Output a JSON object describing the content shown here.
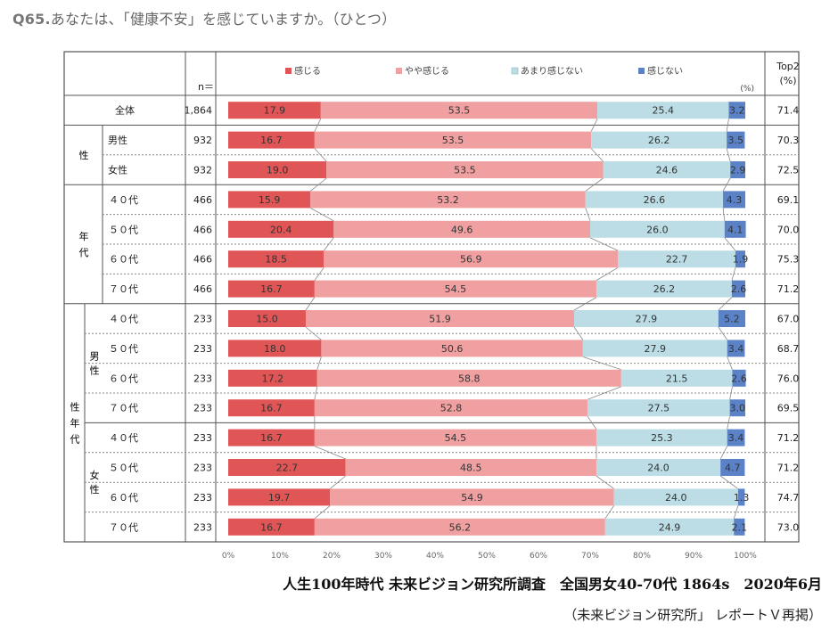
{
  "question": {
    "number": "Q65.",
    "text": "あなたは、「健康不安」を感じていますか。（ひとつ）"
  },
  "chart_data": {
    "type": "bar",
    "stacked": true,
    "orientation": "horizontal",
    "n_header": "n＝",
    "unit_label": "(%)",
    "top2_header": [
      "Top2",
      "(%)"
    ],
    "series": [
      {
        "name": "感じる",
        "color": "#e05555"
      },
      {
        "name": "やや感じる",
        "color": "#f0a0a0"
      },
      {
        "name": "あまり感じない",
        "color": "#bcdde6"
      },
      {
        "name": "感じない",
        "color": "#5b82c6"
      }
    ],
    "xlim": [
      0,
      100
    ],
    "xticks": [
      "0%",
      "10%",
      "20%",
      "30%",
      "40%",
      "50%",
      "60%",
      "70%",
      "80%",
      "90%",
      "100%"
    ],
    "group_labels": {
      "sei": "性",
      "nendai": "年代",
      "seinendai": "性年代",
      "dansei": "男性",
      "josei": "女性"
    },
    "rows": [
      {
        "label": "全体",
        "n": "1,864",
        "values": [
          17.9,
          53.5,
          25.4,
          3.2
        ],
        "labels": [
          "17.9",
          "53.5",
          "25.4",
          "3.2"
        ],
        "top2": "71.4"
      },
      {
        "label": "男性",
        "n": "932",
        "values": [
          16.7,
          53.5,
          26.2,
          3.5
        ],
        "labels": [
          "16.7",
          "53.5",
          "26.2",
          "3.5"
        ],
        "top2": "70.3"
      },
      {
        "label": "女性",
        "n": "932",
        "values": [
          19.0,
          53.5,
          24.6,
          2.9
        ],
        "labels": [
          "19.0",
          "53.5",
          "24.6",
          "2.9"
        ],
        "top2": "72.5"
      },
      {
        "label": "４０代",
        "n": "466",
        "values": [
          15.9,
          53.2,
          26.6,
          4.3
        ],
        "labels": [
          "15.9",
          "53.2",
          "26.6",
          "4.3"
        ],
        "top2": "69.1"
      },
      {
        "label": "５０代",
        "n": "466",
        "values": [
          20.4,
          49.6,
          26.0,
          4.1
        ],
        "labels": [
          "20.4",
          "49.6",
          "26.0",
          "4.1"
        ],
        "top2": "70.0"
      },
      {
        "label": "６０代",
        "n": "466",
        "values": [
          18.5,
          56.9,
          22.7,
          1.9
        ],
        "labels": [
          "18.5",
          "56.9",
          "22.7",
          "1.9"
        ],
        "top2": "75.3"
      },
      {
        "label": "７０代",
        "n": "466",
        "values": [
          16.7,
          54.5,
          26.2,
          2.6
        ],
        "labels": [
          "16.7",
          "54.5",
          "26.2",
          "2.6"
        ],
        "top2": "71.2"
      },
      {
        "label": "４０代",
        "n": "233",
        "values": [
          15.0,
          51.9,
          27.9,
          5.2
        ],
        "labels": [
          "15.0",
          "51.9",
          "27.9",
          "5.2"
        ],
        "top2": "67.0"
      },
      {
        "label": "５０代",
        "n": "233",
        "values": [
          18.0,
          50.6,
          27.9,
          3.4
        ],
        "labels": [
          "18.0",
          "50.6",
          "27.9",
          "3.4"
        ],
        "top2": "68.7"
      },
      {
        "label": "６０代",
        "n": "233",
        "values": [
          17.2,
          58.8,
          21.5,
          2.6
        ],
        "labels": [
          "17.2",
          "58.8",
          "21.5",
          "2.6"
        ],
        "top2": "76.0"
      },
      {
        "label": "７０代",
        "n": "233",
        "values": [
          16.7,
          52.8,
          27.5,
          3.0
        ],
        "labels": [
          "16.7",
          "52.8",
          "27.5",
          "3.0"
        ],
        "top2": "69.5"
      },
      {
        "label": "４０代",
        "n": "233",
        "values": [
          16.7,
          54.5,
          25.3,
          3.4
        ],
        "labels": [
          "16.7",
          "54.5",
          "25.3",
          "3.4"
        ],
        "top2": "71.2"
      },
      {
        "label": "５０代",
        "n": "233",
        "values": [
          22.7,
          48.5,
          24.0,
          4.7
        ],
        "labels": [
          "22.7",
          "48.5",
          "24.0",
          "4.7"
        ],
        "top2": "71.2"
      },
      {
        "label": "６０代",
        "n": "233",
        "values": [
          19.7,
          54.9,
          24.0,
          1.3
        ],
        "labels": [
          "19.7",
          "54.9",
          "24.0",
          "1.3"
        ],
        "top2": "74.7"
      },
      {
        "label": "７０代",
        "n": "233",
        "values": [
          16.7,
          56.2,
          24.9,
          2.1
        ],
        "labels": [
          "16.7",
          "56.2",
          "24.9",
          "2.1"
        ],
        "top2": "73.0"
      }
    ]
  },
  "footer": {
    "source": "人生100年時代 未来ビジョン研究所調査　全国男女40-70代 1864s　2020年6月",
    "credit": "（未来ビジョン研究所」 レポートＶ再掲）"
  }
}
